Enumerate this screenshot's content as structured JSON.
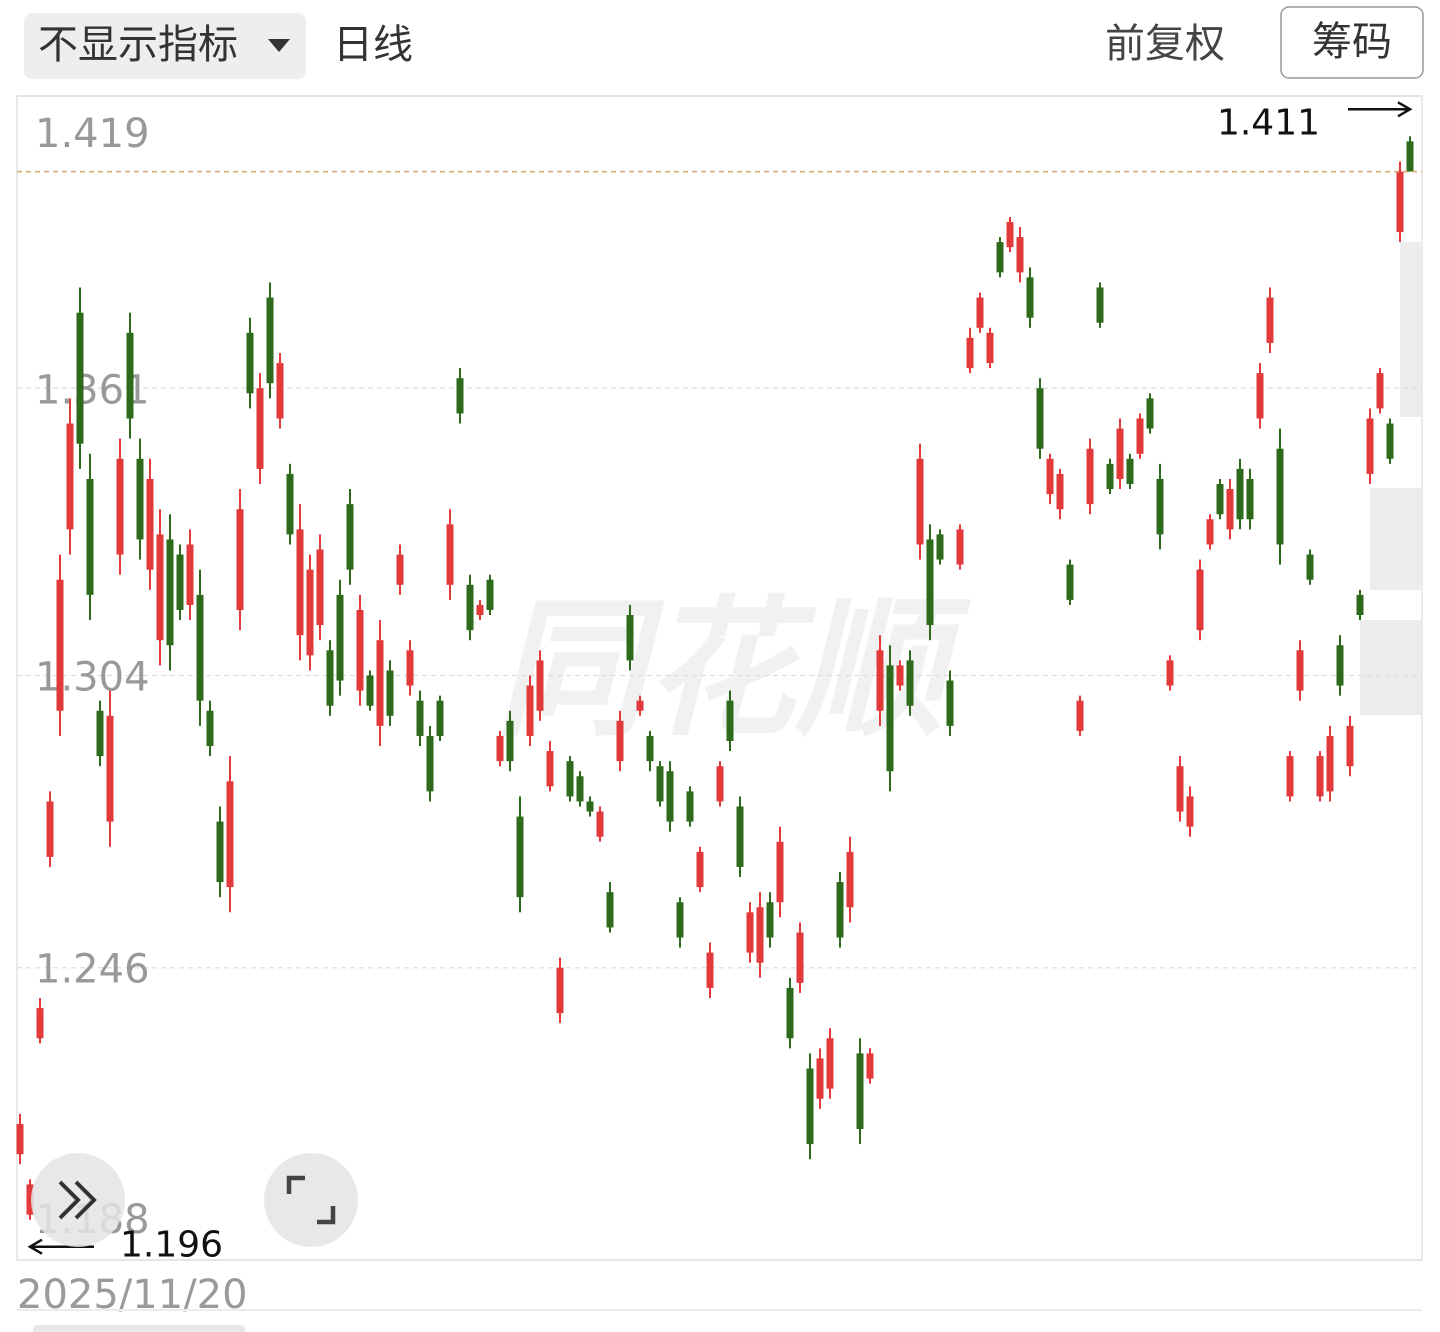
{
  "toolbar": {
    "indicator": "不显示指标",
    "period": "日线",
    "adjust": "前复权",
    "chips": "筹码"
  },
  "chart_data": {
    "type": "candlestick",
    "watermark": "同花顺",
    "categories": [
      "2025/11/20",
      null,
      null,
      null,
      null,
      null,
      null,
      null,
      null,
      null,
      null,
      null,
      null,
      null,
      null,
      null,
      null,
      null,
      null,
      null,
      null,
      null,
      null,
      null,
      null,
      null,
      null,
      null,
      null,
      null,
      null,
      null,
      null,
      null,
      null,
      null,
      null,
      null,
      null,
      null,
      null,
      null,
      null,
      null,
      null,
      null,
      null,
      null,
      null,
      null,
      null,
      null,
      null,
      null,
      null,
      null,
      null,
      null,
      null,
      null,
      null,
      null,
      null,
      null,
      null,
      null,
      null,
      null,
      null,
      null,
      null,
      null,
      null,
      null,
      null,
      null,
      null,
      null,
      null,
      null,
      null,
      null,
      null,
      null,
      null,
      null,
      null,
      null,
      null,
      null,
      null,
      null,
      null,
      null,
      null,
      null,
      null,
      null,
      null,
      null,
      null,
      null,
      null,
      null,
      null,
      null,
      null,
      null,
      null,
      null,
      null,
      null,
      null,
      null,
      null,
      null,
      null,
      null,
      null,
      null,
      null,
      null,
      null,
      null,
      null,
      null,
      null,
      null,
      null,
      null,
      null,
      null,
      null,
      null,
      null,
      null,
      null,
      null,
      null,
      null
    ],
    "open": [
      1.209,
      1.197,
      1.232,
      1.268,
      1.297,
      1.333,
      1.376,
      1.343,
      1.297,
      1.275,
      1.328,
      1.372,
      1.347,
      1.325,
      1.311,
      1.331,
      1.328,
      1.318,
      1.32,
      1.297,
      1.275,
      1.262,
      1.317,
      1.372,
      1.345,
      1.379,
      1.355,
      1.344,
      1.312,
      1.308,
      1.314,
      1.309,
      1.32,
      1.338,
      1.301,
      1.304,
      1.294,
      1.305,
      1.322,
      1.302,
      1.299,
      1.292,
      1.299,
      1.322,
      1.363,
      1.322,
      1.316,
      1.323,
      1.287,
      1.295,
      1.276,
      1.292,
      1.297,
      1.282,
      1.237,
      1.287,
      1.284,
      1.279,
      1.272,
      1.261,
      1.287,
      1.316,
      1.297,
      1.292,
      1.286,
      1.285,
      1.259,
      1.281,
      1.262,
      1.242,
      1.279,
      1.299,
      1.278,
      1.249,
      1.247,
      1.259,
      1.259,
      1.242,
      1.243,
      1.226,
      1.22,
      1.222,
      1.263,
      1.258,
      1.229,
      1.224,
      1.297,
      1.306,
      1.302,
      1.307,
      1.33,
      1.331,
      1.332,
      1.303,
      1.326,
      1.365,
      1.373,
      1.366,
      1.39,
      1.389,
      1.384,
      1.383,
      1.361,
      1.34,
      1.337,
      1.326,
      1.293,
      1.338,
      1.381,
      1.346,
      1.343,
      1.347,
      1.348,
      1.359,
      1.343,
      1.302,
      1.277,
      1.274,
      1.313,
      1.33,
      1.342,
      1.333,
      1.345,
      1.343,
      1.355,
      1.37,
      1.349,
      1.28,
      1.301,
      1.328,
      1.28,
      1.281,
      1.31,
      1.286,
      1.32,
      1.344,
      1.357,
      1.354,
      1.392,
      1.41
    ],
    "high": [
      1.217,
      1.204,
      1.24,
      1.281,
      1.328,
      1.359,
      1.381,
      1.348,
      1.299,
      1.301,
      1.351,
      1.376,
      1.351,
      1.347,
      1.337,
      1.336,
      1.33,
      1.333,
      1.325,
      1.299,
      1.278,
      1.288,
      1.341,
      1.375,
      1.364,
      1.382,
      1.368,
      1.346,
      1.338,
      1.328,
      1.332,
      1.311,
      1.323,
      1.341,
      1.32,
      1.305,
      1.315,
      1.307,
      1.33,
      1.311,
      1.301,
      1.294,
      1.3,
      1.337,
      1.365,
      1.324,
      1.319,
      1.324,
      1.293,
      1.297,
      1.28,
      1.304,
      1.309,
      1.291,
      1.248,
      1.288,
      1.285,
      1.28,
      1.278,
      1.263,
      1.297,
      1.318,
      1.3,
      1.293,
      1.287,
      1.287,
      1.26,
      1.282,
      1.27,
      1.251,
      1.287,
      1.301,
      1.28,
      1.259,
      1.261,
      1.261,
      1.274,
      1.244,
      1.255,
      1.229,
      1.23,
      1.234,
      1.265,
      1.272,
      1.232,
      1.23,
      1.312,
      1.31,
      1.307,
      1.309,
      1.35,
      1.334,
      1.333,
      1.305,
      1.334,
      1.373,
      1.38,
      1.373,
      1.391,
      1.395,
      1.393,
      1.385,
      1.363,
      1.348,
      1.345,
      1.327,
      1.3,
      1.351,
      1.382,
      1.347,
      1.355,
      1.348,
      1.356,
      1.36,
      1.346,
      1.308,
      1.288,
      1.282,
      1.327,
      1.336,
      1.343,
      1.343,
      1.347,
      1.345,
      1.366,
      1.381,
      1.353,
      1.289,
      1.311,
      1.329,
      1.289,
      1.294,
      1.312,
      1.296,
      1.321,
      1.357,
      1.365,
      1.355,
      1.406,
      1.411
    ],
    "low": [
      1.207,
      1.196,
      1.231,
      1.266,
      1.292,
      1.328,
      1.345,
      1.315,
      1.286,
      1.27,
      1.324,
      1.351,
      1.327,
      1.321,
      1.306,
      1.305,
      1.315,
      1.315,
      1.294,
      1.288,
      1.26,
      1.257,
      1.313,
      1.357,
      1.342,
      1.359,
      1.353,
      1.33,
      1.307,
      1.305,
      1.311,
      1.296,
      1.3,
      1.322,
      1.298,
      1.297,
      1.29,
      1.294,
      1.32,
      1.3,
      1.29,
      1.279,
      1.291,
      1.319,
      1.354,
      1.311,
      1.315,
      1.316,
      1.286,
      1.285,
      1.257,
      1.29,
      1.295,
      1.281,
      1.235,
      1.279,
      1.278,
      1.276,
      1.271,
      1.253,
      1.285,
      1.305,
      1.296,
      1.285,
      1.278,
      1.273,
      1.25,
      1.274,
      1.261,
      1.24,
      1.278,
      1.289,
      1.264,
      1.247,
      1.244,
      1.25,
      1.256,
      1.23,
      1.241,
      1.208,
      1.218,
      1.22,
      1.25,
      1.255,
      1.211,
      1.223,
      1.294,
      1.281,
      1.301,
      1.296,
      1.327,
      1.311,
      1.326,
      1.292,
      1.325,
      1.364,
      1.372,
      1.365,
      1.383,
      1.388,
      1.382,
      1.373,
      1.347,
      1.338,
      1.335,
      1.318,
      1.292,
      1.336,
      1.373,
      1.34,
      1.341,
      1.341,
      1.347,
      1.352,
      1.329,
      1.301,
      1.275,
      1.272,
      1.311,
      1.329,
      1.335,
      1.331,
      1.333,
      1.333,
      1.353,
      1.368,
      1.326,
      1.279,
      1.299,
      1.322,
      1.279,
      1.279,
      1.3,
      1.284,
      1.315,
      1.342,
      1.356,
      1.346,
      1.39,
      1.404
    ],
    "close": [
      1.215,
      1.203,
      1.238,
      1.279,
      1.323,
      1.354,
      1.35,
      1.32,
      1.288,
      1.296,
      1.347,
      1.355,
      1.331,
      1.343,
      1.332,
      1.31,
      1.317,
      1.33,
      1.299,
      1.29,
      1.263,
      1.283,
      1.337,
      1.36,
      1.361,
      1.362,
      1.366,
      1.332,
      1.333,
      1.325,
      1.329,
      1.298,
      1.303,
      1.325,
      1.317,
      1.298,
      1.311,
      1.296,
      1.328,
      1.309,
      1.292,
      1.281,
      1.292,
      1.334,
      1.356,
      1.313,
      1.318,
      1.317,
      1.292,
      1.287,
      1.26,
      1.302,
      1.307,
      1.289,
      1.246,
      1.28,
      1.279,
      1.277,
      1.277,
      1.254,
      1.295,
      1.307,
      1.299,
      1.287,
      1.279,
      1.275,
      1.252,
      1.275,
      1.269,
      1.249,
      1.286,
      1.291,
      1.266,
      1.257,
      1.258,
      1.252,
      1.271,
      1.232,
      1.253,
      1.211,
      1.228,
      1.232,
      1.252,
      1.269,
      1.214,
      1.229,
      1.309,
      1.285,
      1.306,
      1.298,
      1.347,
      1.314,
      1.327,
      1.294,
      1.333,
      1.371,
      1.379,
      1.372,
      1.384,
      1.394,
      1.391,
      1.375,
      1.349,
      1.347,
      1.344,
      1.319,
      1.299,
      1.349,
      1.374,
      1.341,
      1.353,
      1.342,
      1.355,
      1.353,
      1.332,
      1.307,
      1.286,
      1.28,
      1.325,
      1.335,
      1.336,
      1.341,
      1.335,
      1.335,
      1.364,
      1.379,
      1.33,
      1.288,
      1.309,
      1.323,
      1.288,
      1.292,
      1.302,
      1.294,
      1.316,
      1.355,
      1.364,
      1.347,
      1.404,
      1.404
    ],
    "up_color": "#e23a3a",
    "down_color": "#2d6a1c",
    "ylim": [
      1.188,
      1.419
    ],
    "yticks": [
      1.419,
      1.361,
      1.304,
      1.246,
      1.188
    ],
    "grid": true
  }
}
